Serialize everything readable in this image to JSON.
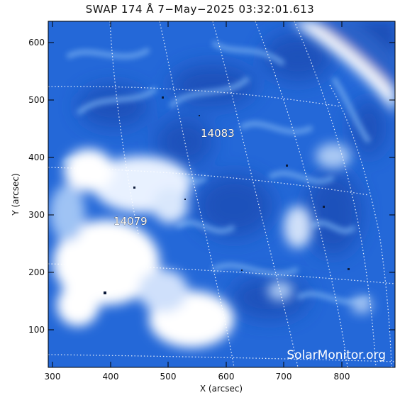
{
  "title": "SWAP  174 Å  7−May−2025 03:32:01.613",
  "x_axis": {
    "label": "X (arcsec)",
    "ticks": [
      "300",
      "400",
      "500",
      "600",
      "700",
      "800"
    ],
    "range_arcsec": [
      293,
      893
    ]
  },
  "y_axis": {
    "label": "Y (arcsec)",
    "ticks": [
      "100",
      "200",
      "300",
      "400",
      "500",
      "600"
    ],
    "range_arcsec": [
      37,
      638
    ]
  },
  "regions": [
    {
      "id": "14083",
      "label": "14083"
    },
    {
      "id": "14079",
      "label": "14079"
    }
  ],
  "watermark": "SolarMonitor.org",
  "colors": {
    "base_blue": "#2468d8",
    "dark_blue": "#1a4fb8",
    "bright": "#ffffff",
    "grid": "#ffffff"
  }
}
